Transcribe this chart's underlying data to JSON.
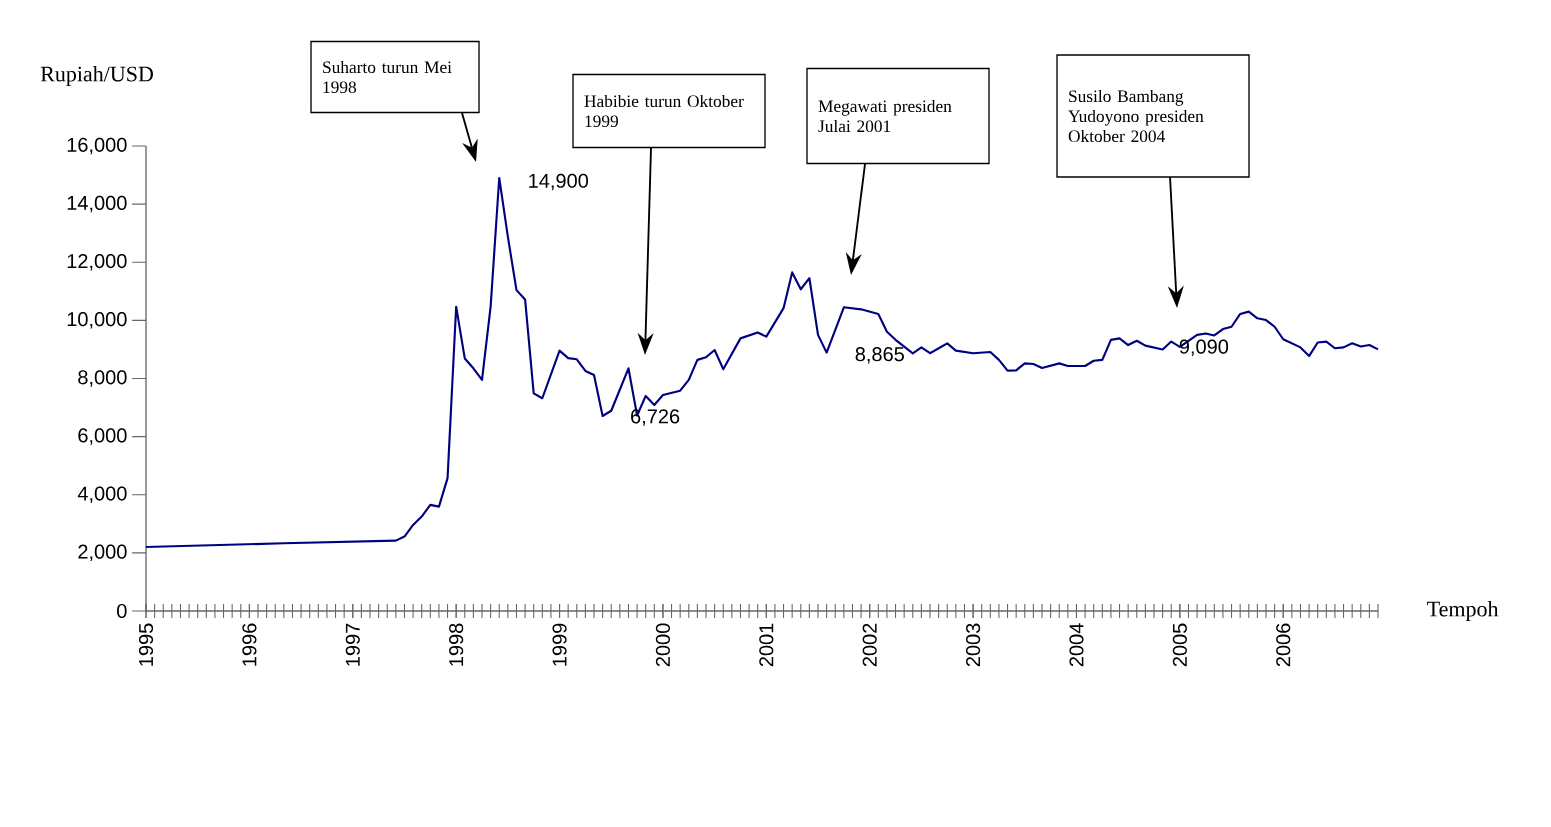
{
  "chart_data": {
    "type": "line",
    "xlabel": "Tempoh",
    "ylabel": "Rupiah/USD",
    "x": [
      "1995-01",
      "1996-05",
      "1997-06",
      "1997-07",
      "1997-08",
      "1997-09",
      "1997-10",
      "1997-11",
      "1997-12",
      "1998-01",
      "1998-02",
      "1998-03",
      "1998-04",
      "1998-05",
      "1998-06",
      "1998-07",
      "1998-08",
      "1998-09",
      "1998-10",
      "1998-11",
      "1999-01",
      "1999-02",
      "1999-03",
      "1999-04",
      "1999-05",
      "1999-06",
      "1999-07",
      "1999-09",
      "1999-10",
      "1999-11",
      "1999-12",
      "2000-01",
      "2000-03",
      "2000-04",
      "2000-05",
      "2000-06",
      "2000-07",
      "2000-08",
      "2000-10",
      "2000-12",
      "2001-01",
      "2001-03",
      "2001-04",
      "2001-05",
      "2001-06",
      "2001-07",
      "2001-08",
      "2001-10",
      "2001-12",
      "2002-02",
      "2002-03",
      "2002-04",
      "2002-06",
      "2002-07",
      "2002-08",
      "2002-10",
      "2002-11",
      "2003-01",
      "2003-03",
      "2003-04",
      "2003-05",
      "2003-06",
      "2003-07",
      "2003-08",
      "2003-09",
      "2003-11",
      "2003-12",
      "2004-02",
      "2004-03",
      "2004-04",
      "2004-05",
      "2004-06",
      "2004-07",
      "2004-08",
      "2004-09",
      "2004-11",
      "2004-12",
      "2005-01",
      "2005-03",
      "2005-04",
      "2005-05",
      "2005-06",
      "2005-07",
      "2005-08",
      "2005-09",
      "2005-10",
      "2005-11",
      "2005-12",
      "2006-01",
      "2006-03",
      "2006-04",
      "2006-05",
      "2006-06",
      "2006-07",
      "2006-08",
      "2006-09",
      "2006-10",
      "2006-11",
      "2006-12"
    ],
    "series": [
      {
        "color": "#000080",
        "values": [
          2200,
          2330,
          2420,
          2560,
          2960,
          3250,
          3650,
          3590,
          4570,
          10470,
          8690,
          8350,
          7950,
          10470,
          14900,
          12880,
          11040,
          10720,
          7490,
          7320,
          8960,
          8700,
          8660,
          8260,
          8120,
          6710,
          6890,
          8350,
          6726,
          7400,
          7090,
          7430,
          7580,
          7950,
          8640,
          8730,
          8980,
          8320,
          9380,
          9580,
          9440,
          10420,
          11650,
          11070,
          11450,
          9500,
          8890,
          10450,
          10380,
          10220,
          9610,
          9330,
          8865,
          9070,
          8870,
          9210,
          8960,
          8870,
          8910,
          8640,
          8270,
          8280,
          8520,
          8500,
          8360,
          8520,
          8430,
          8430,
          8610,
          8640,
          9330,
          9380,
          9150,
          9300,
          9130,
          9000,
          9270,
          9090,
          9500,
          9550,
          9480,
          9700,
          9780,
          10220,
          10300,
          10070,
          10010,
          9780,
          9350,
          9070,
          8770,
          9240,
          9270,
          9040,
          9070,
          9210,
          9100,
          9150,
          9000
        ]
      }
    ],
    "xlim": [
      "1995-01",
      "2006-12"
    ],
    "xticks": [
      "1995",
      "1996",
      "1997",
      "1998",
      "1999",
      "2000",
      "2001",
      "2002",
      "2003",
      "2004",
      "2005",
      "2006"
    ],
    "ylim": [
      0,
      16000
    ],
    "yticks": [
      0,
      {
        "value": 2000,
        "label": "2,000"
      },
      {
        "value": 4000,
        "label": "4,000"
      },
      {
        "value": 6000,
        "label": "6,000"
      },
      {
        "value": 8000,
        "label": "8,000"
      },
      {
        "value": 10000,
        "label": "10,000"
      },
      {
        "value": 12000,
        "label": "12,000"
      },
      {
        "value": 14000,
        "label": "14,000"
      },
      {
        "value": 16000,
        "label": "16,000"
      }
    ],
    "annotations": [
      "Suharto turun Mei 1998",
      "Habibie turun Oktober 1999",
      "Megawati presiden Julai 2001",
      "Susilo Bambang Yudoyono presiden Oktober 2004",
      {
        "text": "14,900",
        "x": "1998-06",
        "y": 14900
      },
      {
        "text": "6,726",
        "x": "1999-10",
        "y": 6726
      },
      {
        "text": "8,865",
        "x": "2002-06",
        "y": 8865
      },
      {
        "text": "9,090",
        "x": "2005-01",
        "y": 9090
      }
    ]
  }
}
